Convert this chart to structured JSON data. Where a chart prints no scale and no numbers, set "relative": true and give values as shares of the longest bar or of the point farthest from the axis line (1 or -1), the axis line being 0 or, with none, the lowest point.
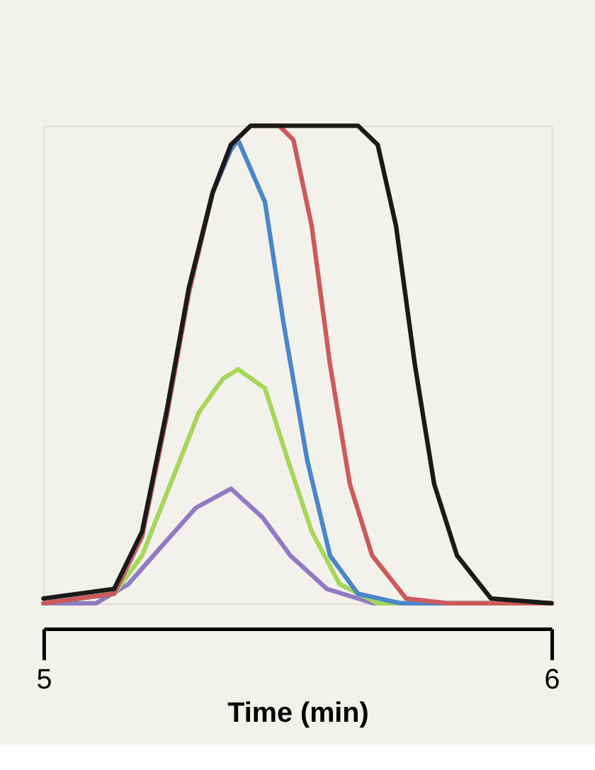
{
  "chart_data": {
    "type": "line",
    "relative": true,
    "xlabel": "Time (min)",
    "xlim": [
      5,
      6
    ],
    "xticks": [
      5,
      6
    ],
    "marker": "none",
    "line_style": "solid",
    "series": [
      {
        "color": "#8e7cc3",
        "x": [
          5.0,
          5.103,
          5.167,
          5.233,
          5.3,
          5.369,
          5.431,
          5.486,
          5.558,
          5.65,
          5.75,
          6.0
        ],
        "values": [
          0.0,
          0.0,
          0.04,
          0.12,
          0.2,
          0.24,
          0.18,
          0.1,
          0.03,
          0.0,
          0.0,
          0.0
        ]
      },
      {
        "color": "#a6d65a",
        "x": [
          5.0,
          5.139,
          5.194,
          5.25,
          5.306,
          5.353,
          5.383,
          5.436,
          5.481,
          5.528,
          5.583,
          5.658,
          6.0
        ],
        "values": [
          0.0,
          0.02,
          0.1,
          0.25,
          0.4,
          0.47,
          0.49,
          0.45,
          0.3,
          0.15,
          0.04,
          0.0,
          0.0
        ]
      },
      {
        "color": "#4a86c8",
        "x": [
          5.0,
          5.139,
          5.194,
          5.242,
          5.286,
          5.333,
          5.369,
          5.383,
          5.436,
          5.472,
          5.519,
          5.564,
          5.619,
          5.703,
          6.0
        ],
        "values": [
          0.0,
          0.02,
          0.14,
          0.39,
          0.65,
          0.86,
          0.95,
          0.97,
          0.84,
          0.59,
          0.3,
          0.1,
          0.02,
          0.0,
          0.0
        ]
      },
      {
        "color": "#cc5a5a",
        "x": [
          5.0,
          5.139,
          5.194,
          5.242,
          5.286,
          5.333,
          5.369,
          5.408,
          5.464,
          5.492,
          5.528,
          5.564,
          5.603,
          5.647,
          5.714,
          5.797,
          6.0
        ],
        "values": [
          0.0,
          0.02,
          0.14,
          0.39,
          0.65,
          0.86,
          0.96,
          1.0,
          1.0,
          0.97,
          0.79,
          0.5,
          0.25,
          0.1,
          0.01,
          0.0,
          0.0
        ]
      },
      {
        "color": "#1a1a1a",
        "x": [
          5.0,
          5.139,
          5.194,
          5.242,
          5.286,
          5.333,
          5.369,
          5.408,
          5.619,
          5.658,
          5.694,
          5.731,
          5.769,
          5.814,
          5.881,
          6.0
        ],
        "values": [
          0.01,
          0.03,
          0.15,
          0.4,
          0.66,
          0.86,
          0.96,
          1.0,
          1.0,
          0.96,
          0.79,
          0.5,
          0.25,
          0.1,
          0.01,
          0.0
        ]
      }
    ]
  }
}
